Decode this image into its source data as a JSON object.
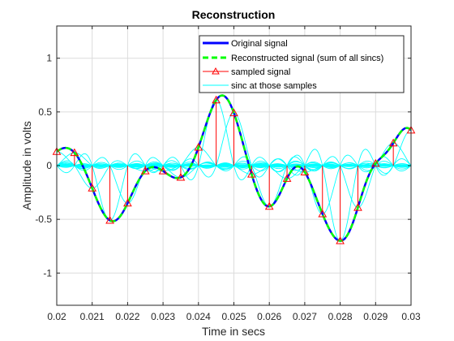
{
  "chart_data": {
    "type": "line",
    "title": "Reconstruction",
    "xlabel": "Time in secs",
    "ylabel": "Amplitude in volts",
    "xlim": [
      0.02,
      0.03
    ],
    "ylim": [
      -1.3,
      1.3
    ],
    "grid": true,
    "legend_location": "top-right",
    "x_ticks": [
      "0.02",
      "0.021",
      "0.022",
      "0.023",
      "0.024",
      "0.025",
      "0.026",
      "0.027",
      "0.028",
      "0.029",
      "0.03"
    ],
    "y_ticks": [
      "-1",
      "-0.5",
      "0",
      "0.5",
      "1"
    ],
    "sample_interval": 0.0005,
    "series": [
      {
        "name": "Original signal",
        "color": "#0000ff",
        "style": "solid"
      },
      {
        "name": "Reconstructed signal (sum of all sincs)",
        "color": "#00ff00",
        "style": "dashed"
      },
      {
        "name": "sampled signal",
        "color": "#ff0000",
        "style": "stem-triangle"
      },
      {
        "name": "sinc at those samples",
        "color": "#00ffff",
        "style": "solid"
      }
    ],
    "samples": {
      "x": [
        0.02,
        0.0205,
        0.021,
        0.0215,
        0.022,
        0.0225,
        0.023,
        0.0235,
        0.024,
        0.0245,
        0.025,
        0.0255,
        0.026,
        0.0265,
        0.027,
        0.0275,
        0.028,
        0.0285,
        0.029,
        0.0295,
        0.03
      ],
      "y": [
        0.13,
        0.12,
        -0.21,
        -0.51,
        -0.35,
        -0.05,
        -0.05,
        -0.11,
        0.17,
        0.61,
        0.49,
        -0.08,
        -0.38,
        -0.12,
        -0.06,
        -0.45,
        -0.7,
        -0.39,
        0.02,
        0.21,
        0.33
      ]
    },
    "colors": {
      "grid": "#dcdcdc",
      "axes": "#262626",
      "background": "#ffffff"
    }
  }
}
